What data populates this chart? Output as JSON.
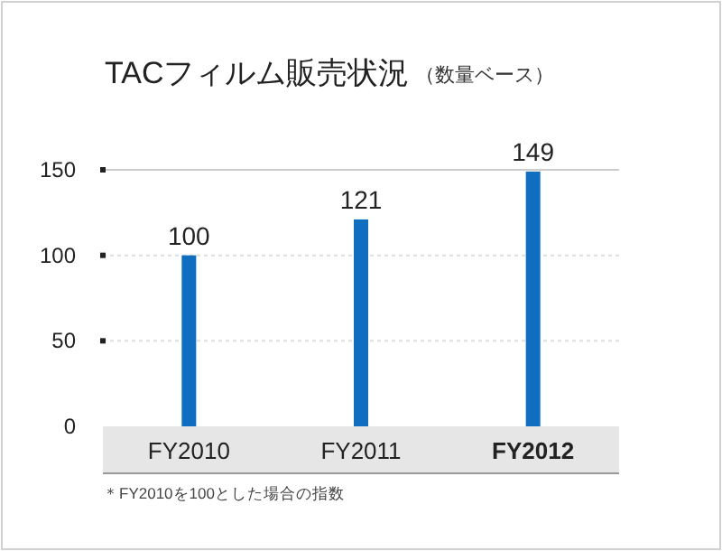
{
  "chart_data": {
    "type": "bar",
    "title": "TACフィルム販売状況",
    "subtitle": "（数量ベース）",
    "categories": [
      "FY2010",
      "FY2011",
      "FY2012"
    ],
    "values": [
      100,
      121,
      149
    ],
    "color": "#0f6ec0",
    "ylim": [
      0,
      150
    ],
    "yticks": [
      0,
      50,
      100,
      150
    ],
    "grid": "y",
    "data_labels": true,
    "annotations": [
      "＊FY2010を100とした場合の指数"
    ]
  }
}
